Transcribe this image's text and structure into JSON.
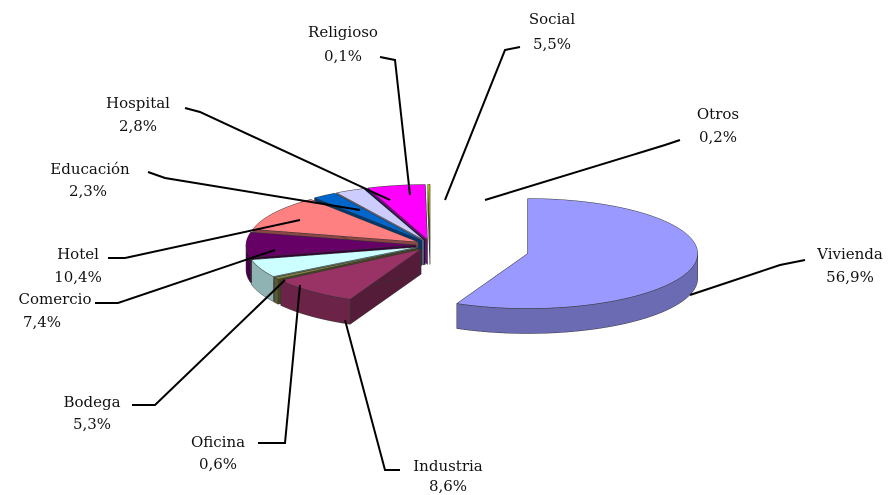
{
  "chart_data": {
    "type": "pie3d",
    "categories": [
      "Vivienda",
      "Industria",
      "Oficina",
      "Bodega",
      "Comercio",
      "Hotel",
      "Educación",
      "Hospital",
      "Religioso",
      "Social",
      "Otros"
    ],
    "values": [
      56.9,
      8.6,
      0.6,
      5.3,
      7.4,
      10.4,
      2.3,
      2.8,
      0.1,
      5.5,
      0.2
    ],
    "value_labels": [
      "56,9%",
      "8,6%",
      "0,6%",
      "5,3%",
      "7,4%",
      "10,4%",
      "2,3%",
      "2,8%",
      "0,1%",
      "5,5%",
      "0,2%"
    ],
    "colors": [
      "#9999ff",
      "#993366",
      "#808040",
      "#ccffff",
      "#660066",
      "#ff8080",
      "#0066cc",
      "#ccccff",
      "#000080",
      "#ff00ff",
      "#cccc00"
    ]
  }
}
